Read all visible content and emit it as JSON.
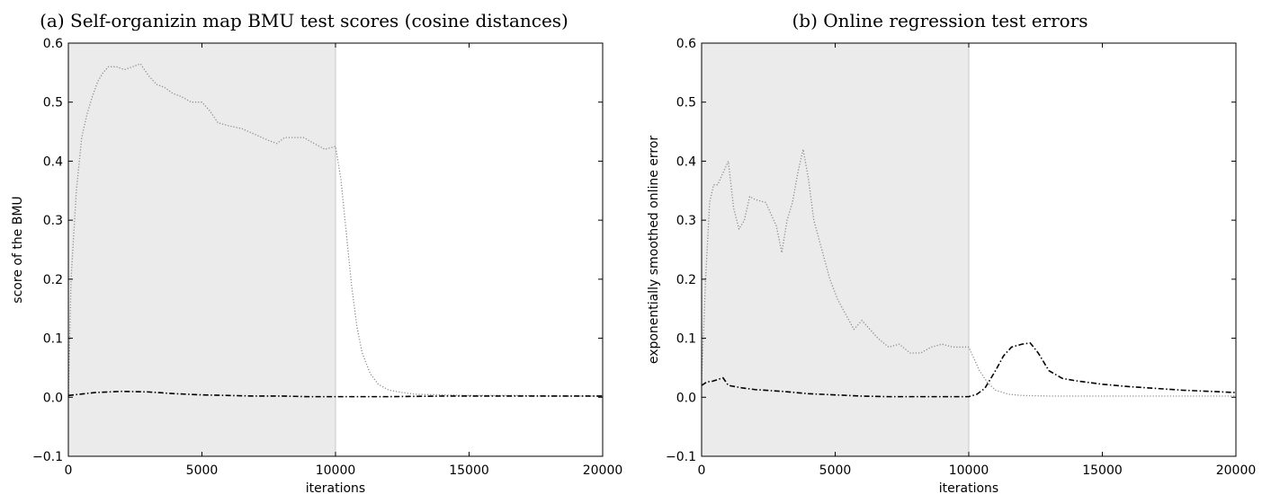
{
  "figure": {
    "panels": [
      "a",
      "b"
    ]
  },
  "chart_data": [
    {
      "type": "line",
      "title": "(a) Self-organizin map BMU test scores (cosine distances)",
      "xlabel": "iterations",
      "ylabel": "score of the BMU",
      "xlim": [
        0,
        20000
      ],
      "ylim": [
        -0.1,
        0.6
      ],
      "x_ticks": [
        0,
        5000,
        10000,
        15000,
        20000
      ],
      "x_tick_labels": [
        "0",
        "5000",
        "10000",
        "15000",
        "20000"
      ],
      "y_ticks": [
        -0.1,
        0.0,
        0.1,
        0.2,
        0.3,
        0.4,
        0.5,
        0.6
      ],
      "y_tick_labels": [
        "−0.1",
        "0.0",
        "0.1",
        "0.2",
        "0.3",
        "0.4",
        "0.5",
        "0.6"
      ],
      "shaded_region": {
        "x": [
          0,
          10000
        ],
        "color": "#ebebeb"
      },
      "grid": false,
      "series": [
        {
          "style": "dotted",
          "color": "#8c8c8c",
          "x": [
            0,
            100,
            300,
            500,
            700,
            900,
            1100,
            1300,
            1500,
            1800,
            2100,
            2400,
            2700,
            3000,
            3300,
            3600,
            3900,
            4200,
            4600,
            5000,
            5300,
            5600,
            6000,
            6500,
            7000,
            7500,
            7800,
            8100,
            8400,
            8800,
            9200,
            9600,
            10000,
            10200,
            10400,
            10600,
            10800,
            11000,
            11300,
            11600,
            12000,
            12500,
            13000,
            14000,
            15000,
            16000,
            17000,
            18000,
            19000,
            20000
          ],
          "y": [
            0.0,
            0.2,
            0.35,
            0.44,
            0.48,
            0.51,
            0.535,
            0.55,
            0.56,
            0.56,
            0.555,
            0.56,
            0.565,
            0.545,
            0.53,
            0.525,
            0.515,
            0.51,
            0.5,
            0.5,
            0.485,
            0.465,
            0.46,
            0.455,
            0.445,
            0.435,
            0.43,
            0.44,
            0.44,
            0.44,
            0.43,
            0.42,
            0.425,
            0.37,
            0.28,
            0.19,
            0.12,
            0.075,
            0.04,
            0.022,
            0.012,
            0.008,
            0.005,
            0.004,
            0.003,
            0.003,
            0.003,
            0.002,
            0.002,
            0.002
          ]
        },
        {
          "style": "dashdot",
          "color": "#000000",
          "x": [
            0,
            1000,
            2000,
            3000,
            4000,
            5000,
            6000,
            7000,
            8000,
            9000,
            10000,
            12000,
            14000,
            16000,
            18000,
            20000
          ],
          "y": [
            0.003,
            0.008,
            0.01,
            0.009,
            0.006,
            0.004,
            0.003,
            0.002,
            0.002,
            0.001,
            0.001,
            0.001,
            0.002,
            0.002,
            0.002,
            0.002
          ]
        }
      ]
    },
    {
      "type": "line",
      "title": "(b) Online regression test errors",
      "xlabel": "iterations",
      "ylabel": "exponentially smoothed online error",
      "xlim": [
        0,
        20000
      ],
      "ylim": [
        -0.1,
        0.6
      ],
      "x_ticks": [
        0,
        5000,
        10000,
        15000,
        20000
      ],
      "x_tick_labels": [
        "0",
        "5000",
        "10000",
        "15000",
        "20000"
      ],
      "y_ticks": [
        -0.1,
        0.0,
        0.1,
        0.2,
        0.3,
        0.4,
        0.5,
        0.6
      ],
      "y_tick_labels": [
        "−0.1",
        "0.0",
        "0.1",
        "0.2",
        "0.3",
        "0.4",
        "0.5",
        "0.6"
      ],
      "shaded_region": {
        "x": [
          0,
          10000
        ],
        "color": "#ebebeb"
      },
      "grid": false,
      "series": [
        {
          "style": "dotted",
          "color": "#8c8c8c",
          "x": [
            0,
            150,
            300,
            450,
            600,
            800,
            1000,
            1200,
            1400,
            1600,
            1800,
            2000,
            2400,
            2800,
            3000,
            3200,
            3400,
            3600,
            3800,
            4000,
            4200,
            4500,
            4800,
            5100,
            5400,
            5700,
            6000,
            6300,
            6600,
            7000,
            7400,
            7800,
            8200,
            8600,
            9000,
            9400,
            9800,
            10000,
            10200,
            10400,
            10700,
            11000,
            11500,
            12000,
            13000,
            14000,
            15000,
            16000,
            17000,
            18000,
            19000,
            20000
          ],
          "y": [
            0.03,
            0.2,
            0.33,
            0.36,
            0.36,
            0.38,
            0.4,
            0.32,
            0.285,
            0.3,
            0.34,
            0.335,
            0.33,
            0.29,
            0.245,
            0.3,
            0.33,
            0.38,
            0.42,
            0.37,
            0.3,
            0.25,
            0.2,
            0.165,
            0.14,
            0.115,
            0.13,
            0.115,
            0.1,
            0.085,
            0.09,
            0.075,
            0.075,
            0.085,
            0.09,
            0.085,
            0.085,
            0.085,
            0.065,
            0.045,
            0.025,
            0.012,
            0.005,
            0.003,
            0.002,
            0.002,
            0.002,
            0.002,
            0.002,
            0.002,
            0.002,
            0.002
          ]
        },
        {
          "style": "dashdot",
          "color": "#000000",
          "x": [
            0,
            200,
            400,
            600,
            800,
            1000,
            1500,
            2000,
            3000,
            4000,
            5000,
            6000,
            7000,
            8000,
            9000,
            10000,
            10300,
            10600,
            11000,
            11300,
            11600,
            12000,
            12300,
            12600,
            13000,
            13500,
            14000,
            15000,
            16000,
            17000,
            18000,
            19000,
            20000
          ],
          "y": [
            0.02,
            0.026,
            0.027,
            0.03,
            0.033,
            0.02,
            0.016,
            0.013,
            0.01,
            0.006,
            0.004,
            0.002,
            0.001,
            0.001,
            0.001,
            0.001,
            0.005,
            0.015,
            0.045,
            0.07,
            0.085,
            0.09,
            0.092,
            0.075,
            0.045,
            0.032,
            0.028,
            0.022,
            0.018,
            0.015,
            0.012,
            0.01,
            0.008
          ]
        }
      ]
    }
  ]
}
